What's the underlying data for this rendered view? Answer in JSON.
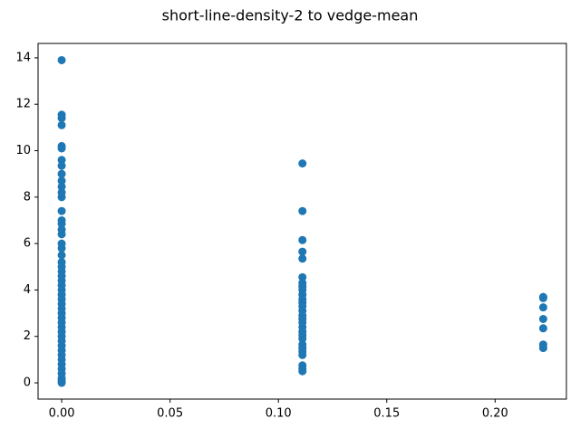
{
  "chart_data": {
    "type": "scatter",
    "title": "short-line-density-2 to vedge-mean",
    "color": "#1f77b4",
    "x": [
      0,
      0,
      0,
      0,
      0,
      0,
      0,
      0,
      0,
      0,
      0,
      0,
      0,
      0,
      0,
      0,
      0,
      0,
      0,
      0,
      0,
      0,
      0,
      0,
      0,
      0,
      0,
      0,
      0,
      0,
      0,
      0,
      0,
      0,
      0,
      0,
      0,
      0,
      0,
      0,
      0,
      0,
      0,
      0,
      0,
      0,
      0,
      0,
      0,
      0.1111,
      0.1111,
      0.1111,
      0.1111,
      0.1111,
      0.1111,
      0.1111,
      0.1111,
      0.1111,
      0.1111,
      0.1111,
      0.1111,
      0.1111,
      0.1111,
      0.1111,
      0.1111,
      0.1111,
      0.1111,
      0.1111,
      0.1111,
      0.1111,
      0.1111,
      0.1111,
      0.1111,
      0.1111,
      0.1111,
      0.1111,
      0.1111,
      0.2222,
      0.2222,
      0.2222,
      0.2222,
      0.2222,
      0.2222,
      0.2222
    ],
    "values": [
      13.9,
      11.55,
      11.4,
      11.1,
      10.2,
      10.1,
      9.6,
      9.35,
      9.0,
      8.7,
      8.45,
      8.2,
      8.0,
      7.4,
      7.0,
      6.85,
      6.6,
      6.4,
      6.0,
      5.8,
      5.5,
      5.2,
      5.0,
      4.8,
      4.6,
      4.4,
      4.2,
      4.0,
      3.8,
      3.6,
      3.4,
      3.2,
      3.0,
      2.8,
      2.6,
      2.4,
      2.2,
      2.0,
      1.8,
      1.6,
      1.4,
      1.2,
      1.0,
      0.8,
      0.6,
      0.4,
      0.2,
      0.1,
      0.0,
      9.45,
      7.4,
      6.15,
      5.65,
      5.35,
      4.55,
      4.3,
      4.15,
      4.0,
      3.8,
      3.6,
      3.45,
      3.3,
      3.1,
      2.9,
      2.75,
      2.6,
      2.4,
      2.2,
      2.05,
      1.9,
      1.65,
      1.5,
      1.35,
      1.2,
      0.75,
      0.6,
      0.5,
      3.7,
      3.65,
      3.25,
      2.75,
      2.35,
      1.65,
      1.5
    ],
    "xlim": [
      -0.0109,
      0.2329
    ],
    "xticks": [
      {
        "value": 0,
        "label": "0.00"
      },
      {
        "value": 0.05,
        "label": "0.05"
      },
      {
        "value": 0.1,
        "label": "0.10"
      },
      {
        "value": 0.15,
        "label": "0.15"
      },
      {
        "value": 0.2,
        "label": "0.20"
      }
    ],
    "ylim": [
      -0.7,
      14.62
    ],
    "yticks": [
      0,
      2,
      4,
      6,
      8,
      10,
      12,
      14
    ]
  }
}
